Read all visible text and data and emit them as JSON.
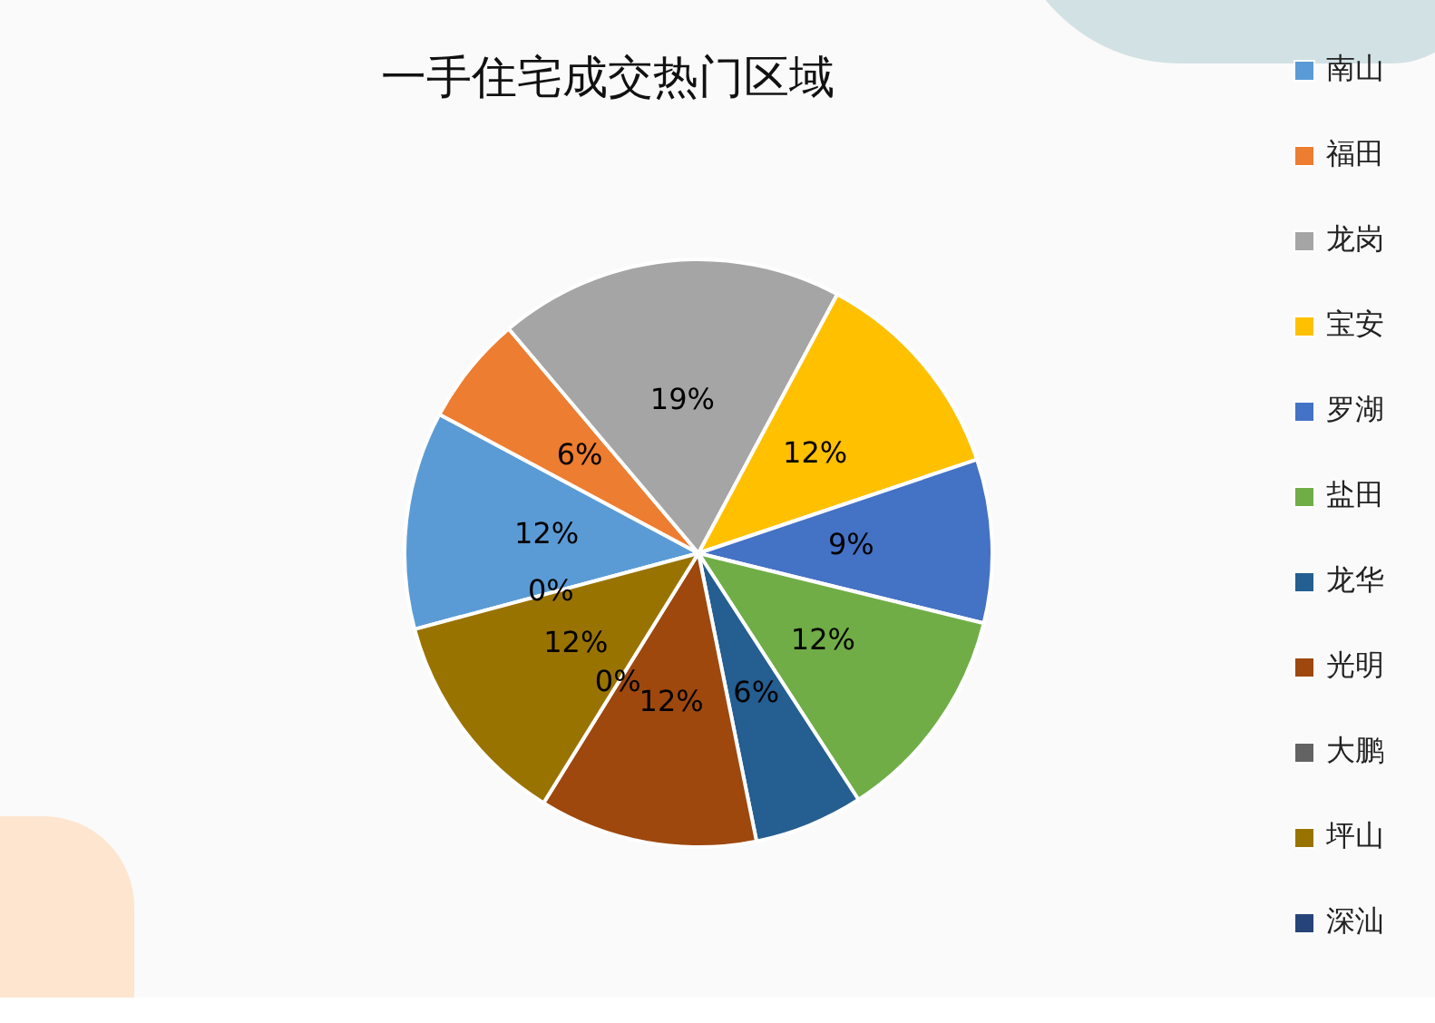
{
  "chart_data": {
    "type": "pie",
    "title": "一手住宅成交热门区域",
    "categories": [
      "南山",
      "福田",
      "龙岗",
      "宝安",
      "罗湖",
      "盐田",
      "龙华",
      "光明",
      "大鹏",
      "坪山",
      "深汕"
    ],
    "values": [
      12,
      6,
      19,
      12,
      9,
      12,
      6,
      12,
      0,
      12,
      0
    ],
    "colors": [
      "#5b9bd5",
      "#ed7d31",
      "#a5a5a5",
      "#ffc000",
      "#4472c4",
      "#70ad47",
      "#255e91",
      "#9e480e",
      "#636363",
      "#997300",
      "#264478"
    ],
    "value_labels": [
      "12%",
      "6%",
      "19%",
      "12%",
      "9%",
      "12%",
      "6%",
      "12%",
      "0%",
      "12%",
      "0%"
    ],
    "legend": "right"
  }
}
